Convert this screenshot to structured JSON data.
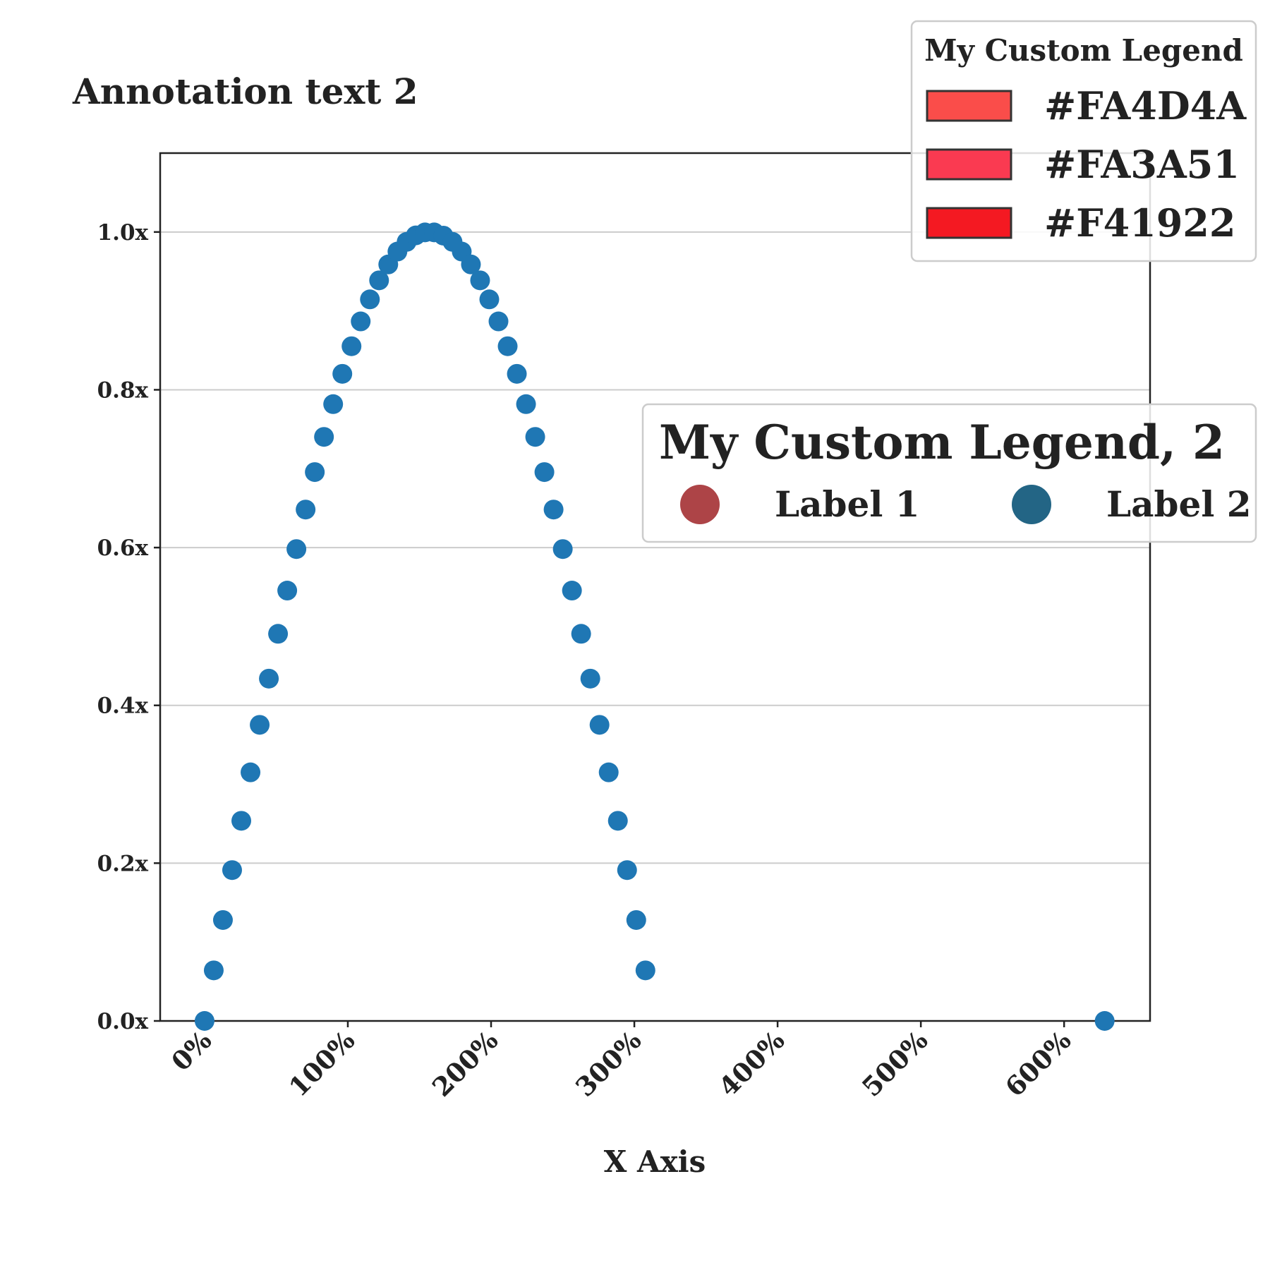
{
  "annotation": "Annotation text 2",
  "chart_data": {
    "type": "scatter",
    "xlabel": "X Axis",
    "ylabel": "",
    "xlim": [
      -0.31,
      6.6
    ],
    "ylim": [
      0.0,
      1.1
    ],
    "x_tick_labels": [
      "0%",
      "100%",
      "200%",
      "300%",
      "400%",
      "500%",
      "600%"
    ],
    "x_tick_values": [
      0,
      1,
      2,
      3,
      4,
      5,
      6
    ],
    "y_tick_labels": [
      "0.0x",
      "0.2x",
      "0.4x",
      "0.6x",
      "0.8x",
      "1.0x"
    ],
    "y_tick_values": [
      0.0,
      0.2,
      0.4,
      0.6,
      0.8,
      1.0
    ],
    "grid": "horizontal",
    "series": [
      {
        "color": "#1f77b4",
        "x": [
          0.0,
          0.0641,
          0.1282,
          0.1923,
          0.2565,
          0.3206,
          0.3847,
          0.4488,
          0.5129,
          0.577,
          0.6411,
          0.7053,
          0.7694,
          0.8335,
          0.8976,
          0.9617,
          1.0258,
          1.0899,
          1.1541,
          1.2182,
          1.2823,
          1.3464,
          1.4105,
          1.4746,
          1.5387,
          1.6029,
          1.667,
          1.7311,
          1.7952,
          1.8593,
          1.9234,
          1.9875,
          2.0517,
          2.1158,
          2.1799,
          2.244,
          2.3081,
          2.3722,
          2.4363,
          2.5005,
          2.5646,
          2.6287,
          2.6928,
          2.7569,
          2.821,
          2.8851,
          2.9493,
          3.0134,
          3.0775,
          6.2832
        ],
        "y": [
          0.0,
          0.0641,
          0.1279,
          0.1912,
          0.2537,
          0.3151,
          0.3753,
          0.4339,
          0.4907,
          0.5455,
          0.5981,
          0.6482,
          0.6957,
          0.7403,
          0.7818,
          0.8202,
          0.8552,
          0.8867,
          0.9146,
          0.9387,
          0.9589,
          0.9752,
          0.9875,
          0.9957,
          0.9995,
          0.9995,
          0.9954,
          0.9875,
          0.9752,
          0.9589,
          0.9387,
          0.9146,
          0.8867,
          0.8552,
          0.8202,
          0.7818,
          0.7403,
          0.6957,
          0.6482,
          0.5981,
          0.5455,
          0.4907,
          0.4339,
          0.3753,
          0.3151,
          0.2537,
          0.1912,
          0.1279,
          0.0641,
          0.0
        ]
      }
    ]
  },
  "legend_colors": {
    "title": "My Custom Legend",
    "placement": "top-right",
    "items": [
      {
        "label": "#FA4D4A",
        "color": "#FA4D4A"
      },
      {
        "label": "#FA3A51",
        "color": "#FA3A51"
      },
      {
        "label": "#F41922",
        "color": "#F41922"
      }
    ]
  },
  "legend_labels": {
    "title": "My Custom Legend, 2",
    "placement": "center-right",
    "items": [
      {
        "label": "Label 1",
        "color": "#ad4447"
      },
      {
        "label": "Label 2",
        "color": "#236585"
      }
    ]
  }
}
